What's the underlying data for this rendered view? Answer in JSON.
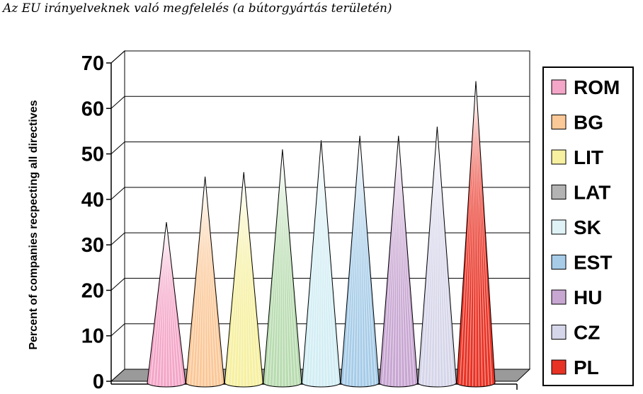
{
  "page_title": "Az EU irányelveknek való megfelelés (a bútorgyártás területén)",
  "chart_data": {
    "type": "bar",
    "shape": "cone-3d",
    "title": "",
    "xlabel": "",
    "ylabel": "Percent of companies recpecting all directives",
    "ylim": [
      0,
      70
    ],
    "yticks": [
      0,
      10,
      20,
      30,
      40,
      50,
      60,
      70
    ],
    "grid": true,
    "legend_position": "right",
    "categories": [
      "ROM",
      "BG",
      "LIT",
      "LAT",
      "SK",
      "EST",
      "HU",
      "CZ",
      "PL"
    ],
    "values": [
      35,
      45,
      46,
      51,
      53,
      54,
      54,
      56,
      66
    ],
    "colors": [
      "#f4a6c8",
      "#fbc898",
      "#f6f0a0",
      "#b8dcb0",
      "#d2eef4",
      "#a6cce8",
      "#c8a6d2",
      "#d6d6ea",
      "#e83224"
    ],
    "legend": [
      {
        "label": "ROM",
        "color": "#f4a6c8"
      },
      {
        "label": "BG",
        "color": "#fbc898"
      },
      {
        "label": "LIT",
        "color": "#f6f0a0"
      },
      {
        "label": "LAT",
        "color": "#b3b3b3"
      },
      {
        "label": "SK",
        "color": "#dff2f6"
      },
      {
        "label": "EST",
        "color": "#a6cce8"
      },
      {
        "label": "HU",
        "color": "#c8a6d2"
      },
      {
        "label": "CZ",
        "color": "#d6d6ea"
      },
      {
        "label": "PL",
        "color": "#e83224"
      }
    ]
  }
}
